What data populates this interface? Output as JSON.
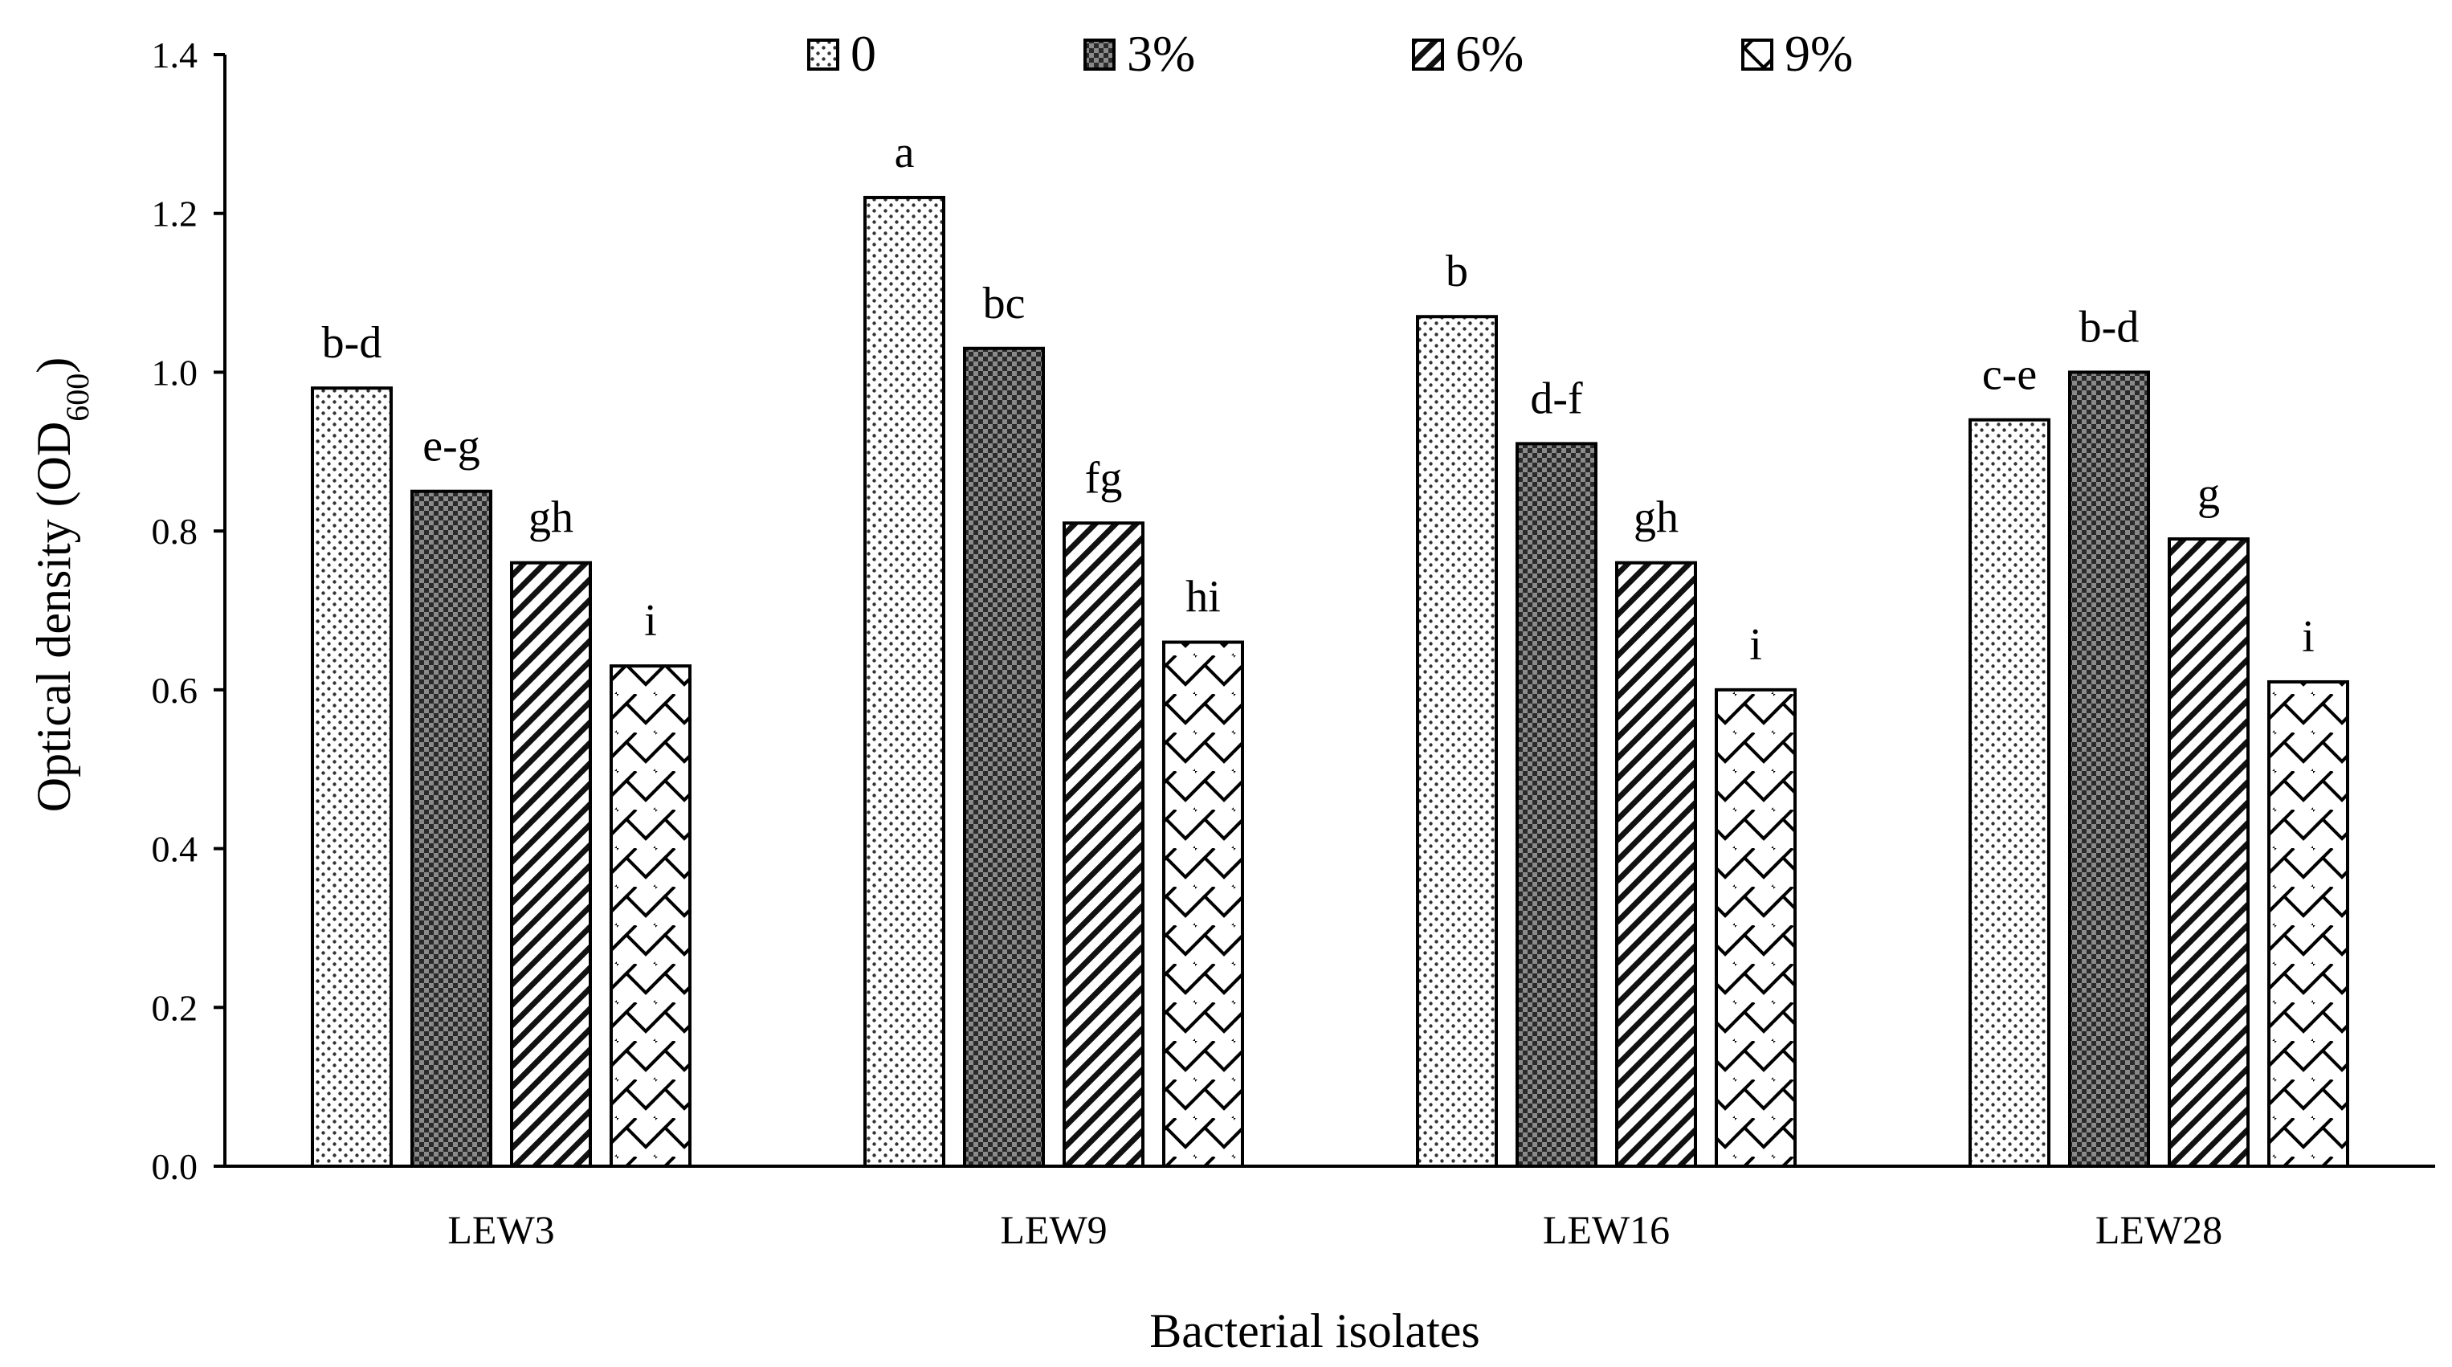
{
  "chart_data": {
    "type": "bar",
    "title": "",
    "xlabel": "Bacterial isolates",
    "ylabel": "Optical density (OD",
    "ylabel_sub": "600",
    "ylabel_close": ")",
    "ylim": [
      0,
      1.4
    ],
    "yticks": [
      "0.0",
      "0.2",
      "0.4",
      "0.6",
      "0.8",
      "1.0",
      "1.2",
      "1.4"
    ],
    "categories": [
      "LEW3",
      "LEW9",
      "LEW16",
      "LEW28"
    ],
    "legend_position": "top",
    "grid": false,
    "series": [
      {
        "name": "0",
        "pattern": "dots",
        "values": [
          0.98,
          1.22,
          1.07,
          0.94
        ],
        "labels": [
          "b-d",
          "a",
          "b",
          "c-e"
        ]
      },
      {
        "name": "3%",
        "pattern": "crosshatch",
        "values": [
          0.85,
          1.03,
          0.91,
          1.0
        ],
        "labels": [
          "e-g",
          "bc",
          "d-f",
          "b-d"
        ]
      },
      {
        "name": "6%",
        "pattern": "diagonal",
        "values": [
          0.76,
          0.81,
          0.76,
          0.79
        ],
        "labels": [
          "gh",
          "fg",
          "gh",
          "g"
        ]
      },
      {
        "name": "9%",
        "pattern": "zigzag",
        "values": [
          0.63,
          0.66,
          0.6,
          0.61
        ],
        "labels": [
          "i",
          "hi",
          "i",
          "i"
        ]
      }
    ]
  }
}
